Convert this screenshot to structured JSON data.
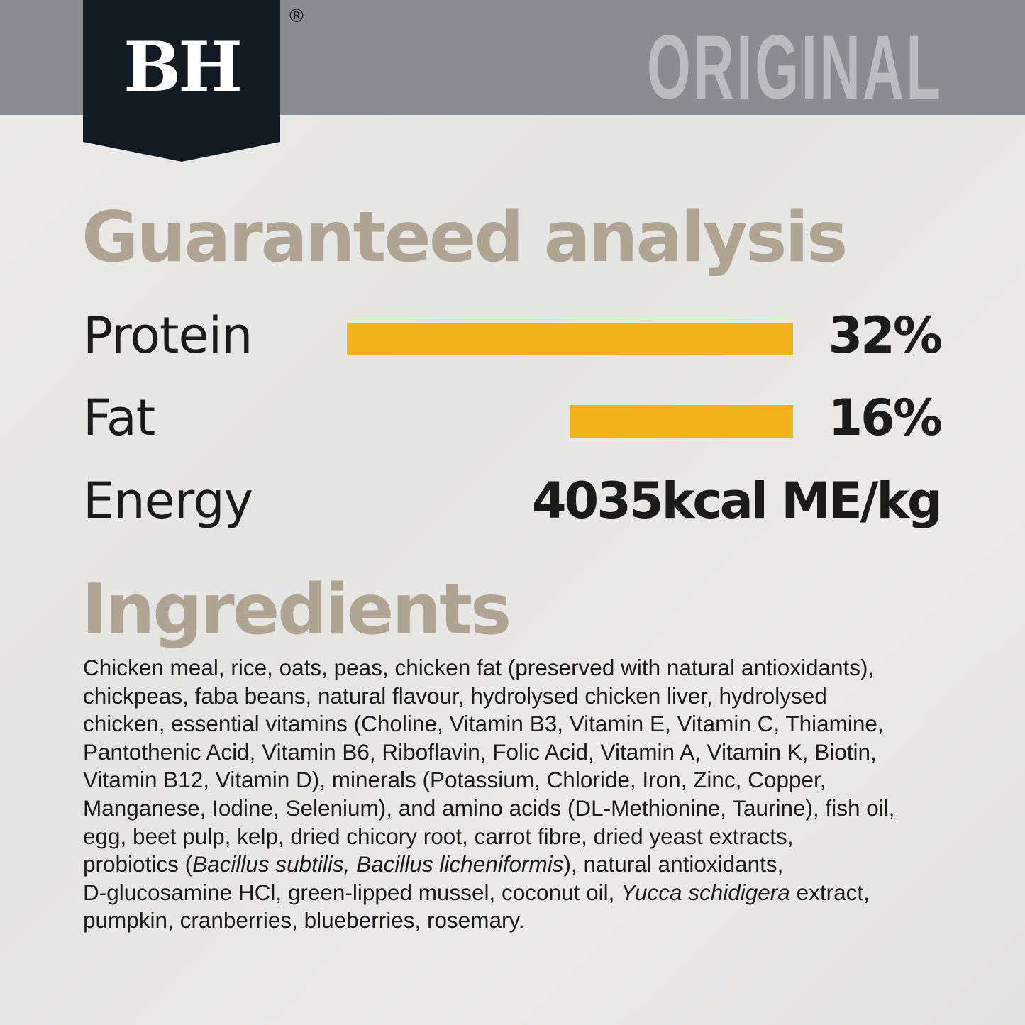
{
  "brand": {
    "logo_text": "BH",
    "registered_mark": "®",
    "variant": "ORIGINAL"
  },
  "colors": {
    "header": "#898c90",
    "logo": "#121b21",
    "heading": "#b0a493",
    "bar": "#f0b418",
    "variant_text": "#bbbcc0"
  },
  "analysis": {
    "title": "Guaranteed analysis",
    "rows": [
      {
        "label": "Protein",
        "value": "32%",
        "percent": 32
      },
      {
        "label": "Fat",
        "value": "16%",
        "percent": 16
      },
      {
        "label": "Energy",
        "value": "4035kcal ME/kg"
      }
    ]
  },
  "ingredients": {
    "title": "Ingredients",
    "italic_terms": [
      "Bacillus subtilis, Bacillus licheniformis",
      "Yucca schidigera"
    ],
    "lines": [
      "Chicken meal, rice, oats, peas, chicken fat (preserved with natural antioxidants),",
      "chickpeas, faba beans, natural flavour, hydrolysed chicken liver, hydrolysed",
      "chicken, essential vitamins (Choline, Vitamin B3, Vitamin E, Vitamin C, Thiamine,",
      "Pantothenic Acid, Vitamin B6, Riboflavin, Folic Acid, Vitamin A, Vitamin K, Biotin,",
      "Vitamin B12, Vitamin D), minerals (Potassium, Chloride, Iron, Zinc, Copper,",
      "Manganese, Iodine, Selenium), and amino acids (DL-Methionine, Taurine), fish oil,",
      "egg, beet pulp, kelp, dried chicory root, carrot fibre, dried yeast extracts,",
      "probiotics (Bacillus subtilis, Bacillus licheniformis), natural antioxidants,",
      "D-glucosamine HCl, green-lipped mussel, coconut oil, Yucca schidigera extract,",
      "pumpkin, cranberries, blueberries, rosemary."
    ]
  }
}
